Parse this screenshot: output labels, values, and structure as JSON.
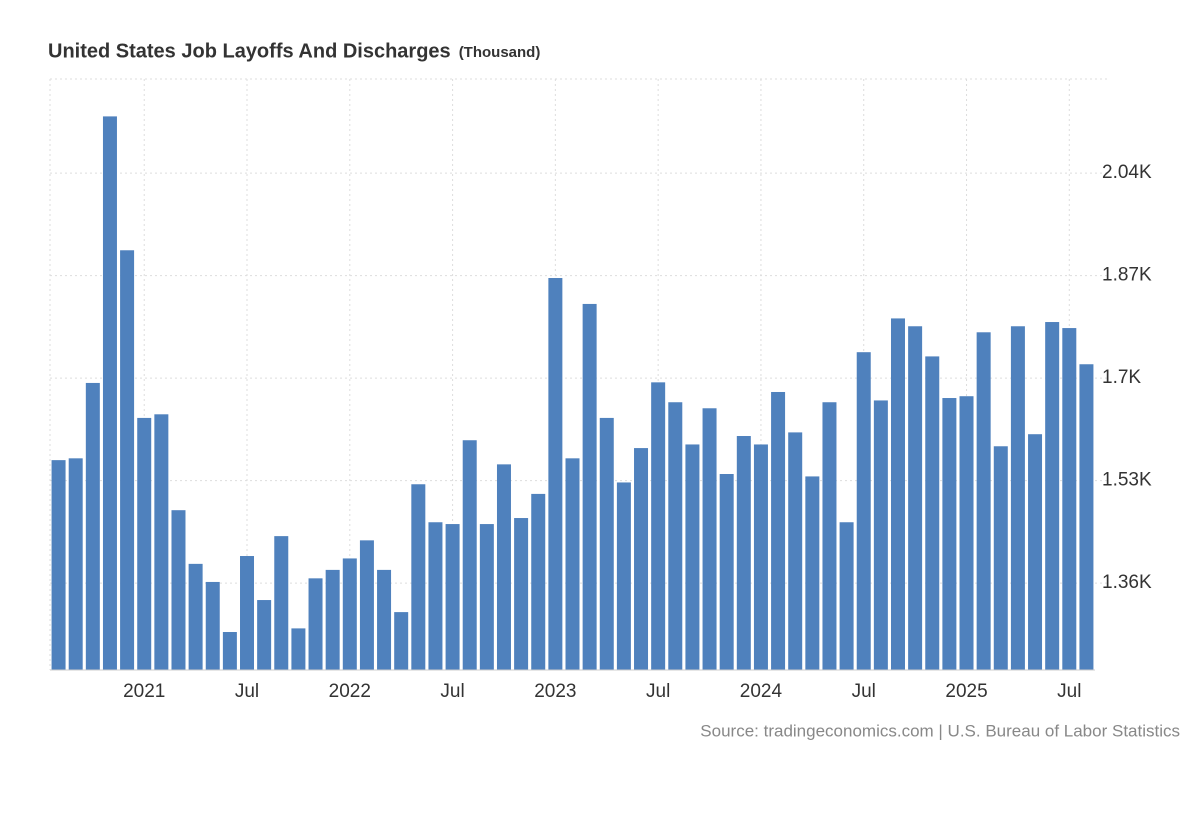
{
  "chart_data": {
    "type": "bar",
    "title": "United States Job Layoffs And Discharges",
    "unit": "(Thousand)",
    "source": "Source: tradingeconomics.com | U.S. Bureau of Labor Statistics",
    "color": "#4f81bd",
    "categories": [
      null,
      null,
      null,
      null,
      null,
      "2021",
      null,
      null,
      null,
      null,
      null,
      "Jul",
      null,
      null,
      null,
      null,
      null,
      "2022",
      null,
      null,
      null,
      null,
      null,
      "Jul",
      null,
      null,
      null,
      null,
      null,
      "2023",
      null,
      null,
      null,
      null,
      null,
      "Jul",
      null,
      null,
      null,
      null,
      null,
      "2024",
      null,
      null,
      null,
      null,
      null,
      "Jul",
      null,
      null,
      null,
      null,
      null,
      "2025",
      null,
      null,
      null,
      null,
      null,
      "Jul",
      null
    ],
    "values": [
      1564,
      1567,
      1692,
      2134,
      1912,
      1634,
      1640,
      1481,
      1392,
      1362,
      1279,
      1405,
      1332,
      1438,
      1285,
      1368,
      1382,
      1401,
      1431,
      1382,
      1312,
      1524,
      1461,
      1458,
      1597,
      1458,
      1557,
      1468,
      1508,
      1866,
      1567,
      1823,
      1634,
      1527,
      1584,
      1693,
      1660,
      1590,
      1650,
      1541,
      1604,
      1590,
      1677,
      1610,
      1537,
      1660,
      1461,
      1743,
      1663,
      1799,
      1786,
      1736,
      1667,
      1670,
      1776,
      1587,
      1786,
      1607,
      1793,
      1783,
      1723
    ],
    "ylim": [
      1216,
      2196
    ],
    "yticks": [
      {
        "value": 1360,
        "label": "1.36K"
      },
      {
        "value": 1530,
        "label": "1.53K"
      },
      {
        "value": 1700,
        "label": "1.7K"
      },
      {
        "value": 1870,
        "label": "1.87K"
      },
      {
        "value": 2040,
        "label": "2.04K"
      }
    ],
    "grid": true
  }
}
